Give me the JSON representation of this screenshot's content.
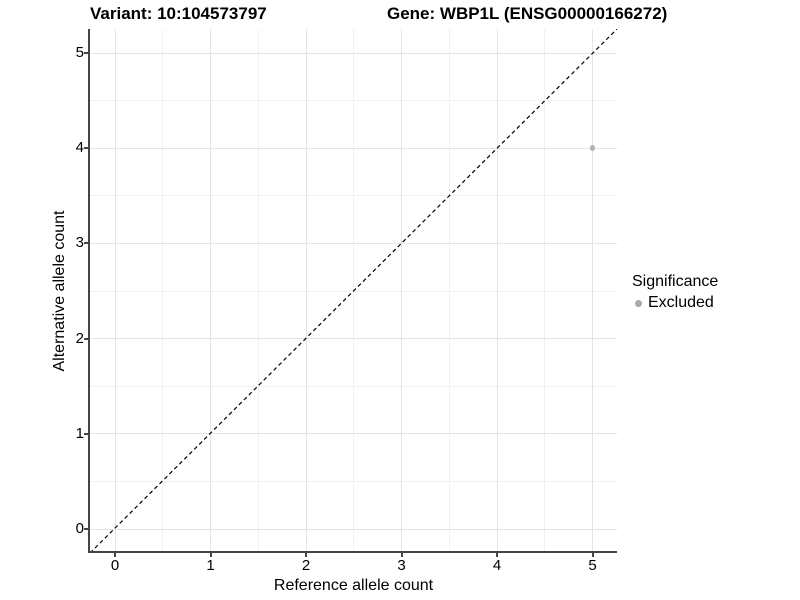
{
  "chart_data": {
    "type": "scatter",
    "titles": {
      "left": "Variant: 10:104573797",
      "right": "Gene: WBP1L (ENSG00000166272)"
    },
    "xlabel": "Reference allele count",
    "ylabel": "Alternative allele count",
    "xlim": [
      -0.25,
      5.25
    ],
    "ylim": [
      -0.25,
      5.25
    ],
    "x_ticks": [
      0,
      1,
      2,
      3,
      4,
      5
    ],
    "y_ticks": [
      0,
      1,
      2,
      3,
      4,
      5
    ],
    "x_minor": [
      0.5,
      1.5,
      2.5,
      3.5,
      4.5
    ],
    "y_minor": [
      0.5,
      1.5,
      2.5,
      3.5,
      4.5
    ],
    "grid": {
      "major": true,
      "minor": true
    },
    "reference_line": {
      "kind": "identity",
      "equation": "y = x",
      "style": "dashed",
      "dash": "4 3",
      "color": "#000000",
      "width": 1.2
    },
    "series": [
      {
        "name": "Excluded",
        "color": "#b3b3b3",
        "point_radius": 2.8,
        "points": [
          {
            "x": 5,
            "y": 4
          }
        ]
      }
    ],
    "legend": {
      "title": "Significance",
      "position": "right",
      "entries": [
        {
          "label": "Excluded",
          "color": "#a9a9a9"
        }
      ]
    },
    "colors": {
      "grid_major": "#e4e4e4",
      "grid_minor": "#f1f1f1",
      "axis_line": "#454545",
      "tick": "#454545",
      "text": "#000000",
      "background": "#ffffff"
    }
  }
}
